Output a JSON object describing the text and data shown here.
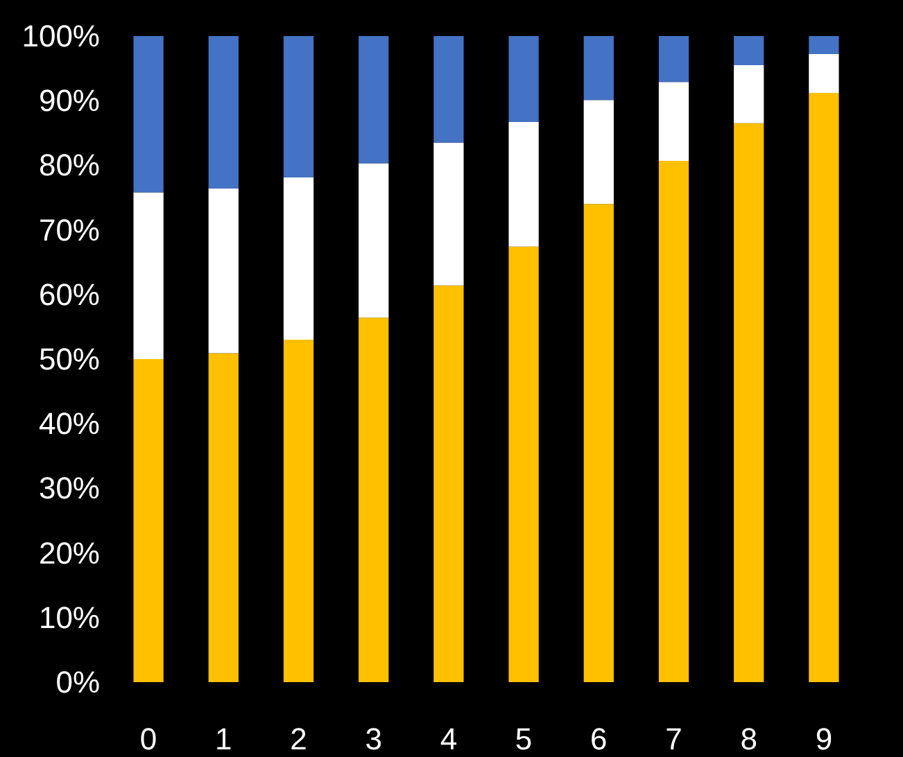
{
  "chart_data": {
    "type": "bar",
    "stacked": true,
    "categories": [
      "0",
      "1",
      "2",
      "3",
      "4",
      "5",
      "6",
      "7",
      "8",
      "9"
    ],
    "series": [
      {
        "color": "#ffc000",
        "values": [
          50,
          50.9,
          53,
          56.4,
          61.4,
          67.4,
          74,
          80.7,
          86.5,
          91.2
        ]
      },
      {
        "color": "#ffffff",
        "values": [
          25.8,
          25.5,
          25.1,
          23.9,
          22.1,
          19.3,
          16.1,
          12.2,
          9,
          6
        ]
      },
      {
        "color": "#4472c4",
        "values": [
          24.2,
          23.6,
          21.9,
          19.7,
          16.5,
          13.3,
          9.9,
          7.1,
          4.5,
          2.8
        ]
      }
    ],
    "ylim": [
      0,
      100
    ],
    "yticks": [
      {
        "value": 0,
        "label": "0%"
      },
      {
        "value": 10,
        "label": "10%"
      },
      {
        "value": 20,
        "label": "20%"
      },
      {
        "value": 30,
        "label": "30%"
      },
      {
        "value": 40,
        "label": "40%"
      },
      {
        "value": 50,
        "label": "50%"
      },
      {
        "value": 60,
        "label": "60%"
      },
      {
        "value": 70,
        "label": "70%"
      },
      {
        "value": 80,
        "label": "80%"
      },
      {
        "value": 90,
        "label": "90%"
      },
      {
        "value": 100,
        "label": "100%"
      }
    ],
    "grid": false
  }
}
